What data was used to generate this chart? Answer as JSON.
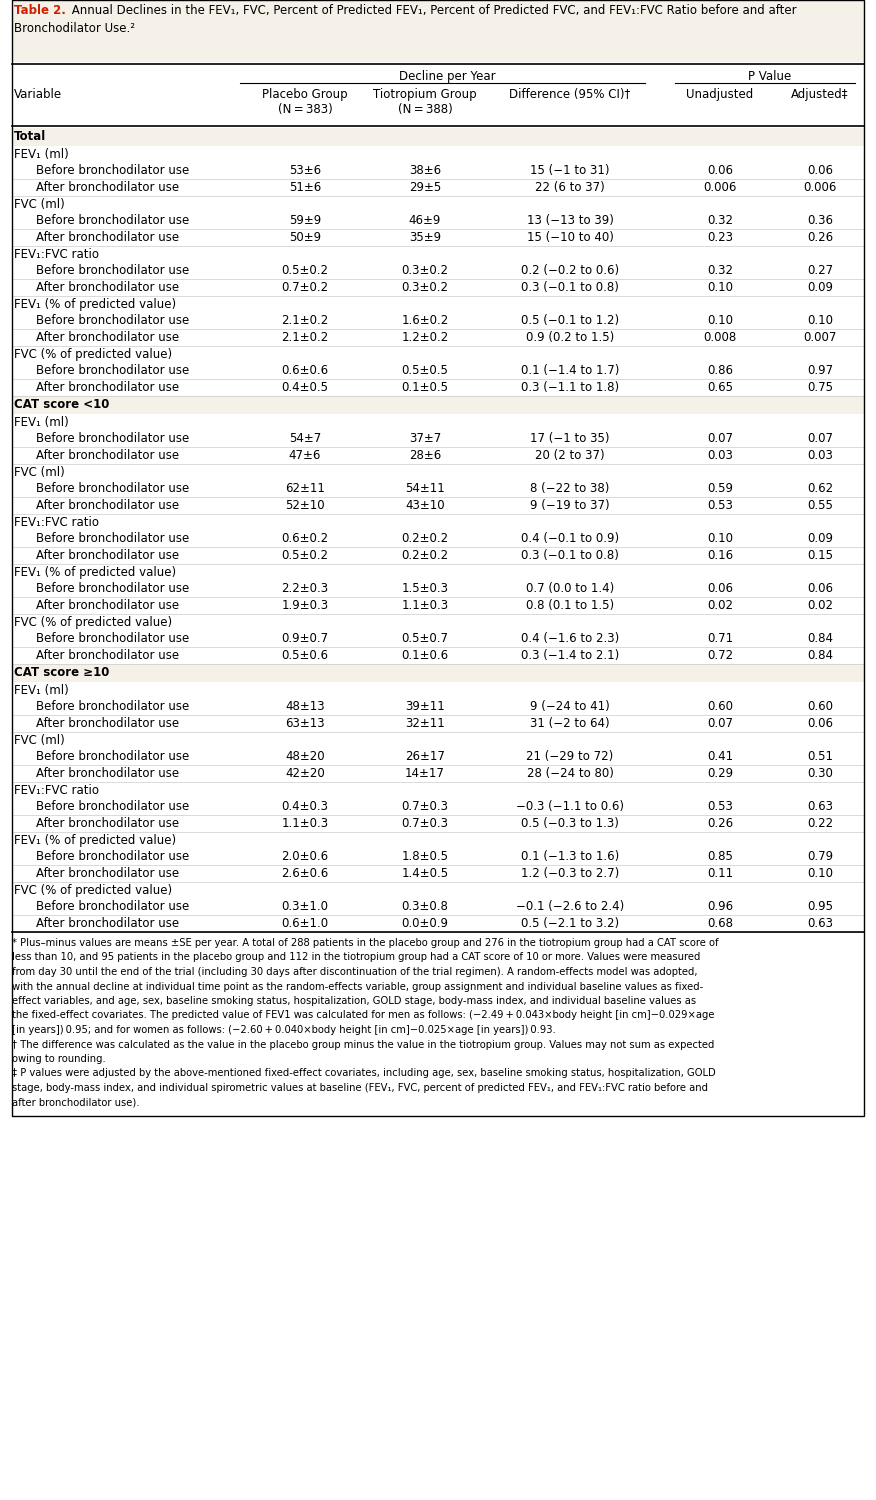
{
  "title_bold": "Table 2.",
  "title_rest": " Annual Declines in the FEV₁, FVC, Percent of Predicted FEV₁, Percent of Predicted FVC, and FEV₁:FVC Ratio before and after Bronchodilator Use.",
  "title_super": "²",
  "bg_color": "#ffffff",
  "section_bg": "#f5f0e8",
  "rows": [
    {
      "type": "section",
      "label": "Total",
      "col1": "",
      "col2": "",
      "col3": "",
      "col4": "",
      "col5": ""
    },
    {
      "type": "subheader",
      "label": "FEV₁ (ml)",
      "col1": "",
      "col2": "",
      "col3": "",
      "col4": "",
      "col5": ""
    },
    {
      "type": "data",
      "label": "Before bronchodilator use",
      "col1": "53±6",
      "col2": "38±6",
      "col3": "15 (−1 to 31)",
      "col4": "0.06",
      "col5": "0.06"
    },
    {
      "type": "data",
      "label": "After bronchodilator use",
      "col1": "51±6",
      "col2": "29±5",
      "col3": "22 (6 to 37)",
      "col4": "0.006",
      "col5": "0.006"
    },
    {
      "type": "subheader",
      "label": "FVC (ml)",
      "col1": "",
      "col2": "",
      "col3": "",
      "col4": "",
      "col5": ""
    },
    {
      "type": "data",
      "label": "Before bronchodilator use",
      "col1": "59±9",
      "col2": "46±9",
      "col3": "13 (−13 to 39)",
      "col4": "0.32",
      "col5": "0.36"
    },
    {
      "type": "data",
      "label": "After bronchodilator use",
      "col1": "50±9",
      "col2": "35±9",
      "col3": "15 (−10 to 40)",
      "col4": "0.23",
      "col5": "0.26"
    },
    {
      "type": "subheader",
      "label": "FEV₁:FVC ratio",
      "col1": "",
      "col2": "",
      "col3": "",
      "col4": "",
      "col5": ""
    },
    {
      "type": "data",
      "label": "Before bronchodilator use",
      "col1": "0.5±0.2",
      "col2": "0.3±0.2",
      "col3": "0.2 (−0.2 to 0.6)",
      "col4": "0.32",
      "col5": "0.27"
    },
    {
      "type": "data",
      "label": "After bronchodilator use",
      "col1": "0.7±0.2",
      "col2": "0.3±0.2",
      "col3": "0.3 (−0.1 to 0.8)",
      "col4": "0.10",
      "col5": "0.09"
    },
    {
      "type": "subheader",
      "label": "FEV₁ (% of predicted value)",
      "col1": "",
      "col2": "",
      "col3": "",
      "col4": "",
      "col5": ""
    },
    {
      "type": "data",
      "label": "Before bronchodilator use",
      "col1": "2.1±0.2",
      "col2": "1.6±0.2",
      "col3": "0.5 (−0.1 to 1.2)",
      "col4": "0.10",
      "col5": "0.10"
    },
    {
      "type": "data",
      "label": "After bronchodilator use",
      "col1": "2.1±0.2",
      "col2": "1.2±0.2",
      "col3": "0.9 (0.2 to 1.5)",
      "col4": "0.008",
      "col5": "0.007"
    },
    {
      "type": "subheader",
      "label": "FVC (% of predicted value)",
      "col1": "",
      "col2": "",
      "col3": "",
      "col4": "",
      "col5": ""
    },
    {
      "type": "data",
      "label": "Before bronchodilator use",
      "col1": "0.6±0.6",
      "col2": "0.5±0.5",
      "col3": "0.1 (−1.4 to 1.7)",
      "col4": "0.86",
      "col5": "0.97"
    },
    {
      "type": "data",
      "label": "After bronchodilator use",
      "col1": "0.4±0.5",
      "col2": "0.1±0.5",
      "col3": "0.3 (−1.1 to 1.8)",
      "col4": "0.65",
      "col5": "0.75"
    },
    {
      "type": "section",
      "label": "CAT score <10",
      "col1": "",
      "col2": "",
      "col3": "",
      "col4": "",
      "col5": ""
    },
    {
      "type": "subheader",
      "label": "FEV₁ (ml)",
      "col1": "",
      "col2": "",
      "col3": "",
      "col4": "",
      "col5": ""
    },
    {
      "type": "data",
      "label": "Before bronchodilator use",
      "col1": "54±7",
      "col2": "37±7",
      "col3": "17 (−1 to 35)",
      "col4": "0.07",
      "col5": "0.07"
    },
    {
      "type": "data",
      "label": "After bronchodilator use",
      "col1": "47±6",
      "col2": "28±6",
      "col3": "20 (2 to 37)",
      "col4": "0.03",
      "col5": "0.03"
    },
    {
      "type": "subheader",
      "label": "FVC (ml)",
      "col1": "",
      "col2": "",
      "col3": "",
      "col4": "",
      "col5": ""
    },
    {
      "type": "data",
      "label": "Before bronchodilator use",
      "col1": "62±11",
      "col2": "54±11",
      "col3": "8 (−22 to 38)",
      "col4": "0.59",
      "col5": "0.62"
    },
    {
      "type": "data",
      "label": "After bronchodilator use",
      "col1": "52±10",
      "col2": "43±10",
      "col3": "9 (−19 to 37)",
      "col4": "0.53",
      "col5": "0.55"
    },
    {
      "type": "subheader",
      "label": "FEV₁:FVC ratio",
      "col1": "",
      "col2": "",
      "col3": "",
      "col4": "",
      "col5": ""
    },
    {
      "type": "data",
      "label": "Before bronchodilator use",
      "col1": "0.6±0.2",
      "col2": "0.2±0.2",
      "col3": "0.4 (−0.1 to 0.9)",
      "col4": "0.10",
      "col5": "0.09"
    },
    {
      "type": "data",
      "label": "After bronchodilator use",
      "col1": "0.5±0.2",
      "col2": "0.2±0.2",
      "col3": "0.3 (−0.1 to 0.8)",
      "col4": "0.16",
      "col5": "0.15"
    },
    {
      "type": "subheader",
      "label": "FEV₁ (% of predicted value)",
      "col1": "",
      "col2": "",
      "col3": "",
      "col4": "",
      "col5": ""
    },
    {
      "type": "data",
      "label": "Before bronchodilator use",
      "col1": "2.2±0.3",
      "col2": "1.5±0.3",
      "col3": "0.7 (0.0 to 1.4)",
      "col4": "0.06",
      "col5": "0.06"
    },
    {
      "type": "data",
      "label": "After bronchodilator use",
      "col1": "1.9±0.3",
      "col2": "1.1±0.3",
      "col3": "0.8 (0.1 to 1.5)",
      "col4": "0.02",
      "col5": "0.02"
    },
    {
      "type": "subheader",
      "label": "FVC (% of predicted value)",
      "col1": "",
      "col2": "",
      "col3": "",
      "col4": "",
      "col5": ""
    },
    {
      "type": "data",
      "label": "Before bronchodilator use",
      "col1": "0.9±0.7",
      "col2": "0.5±0.7",
      "col3": "0.4 (−1.6 to 2.3)",
      "col4": "0.71",
      "col5": "0.84"
    },
    {
      "type": "data",
      "label": "After bronchodilator use",
      "col1": "0.5±0.6",
      "col2": "0.1±0.6",
      "col3": "0.3 (−1.4 to 2.1)",
      "col4": "0.72",
      "col5": "0.84"
    },
    {
      "type": "section",
      "label": "CAT score ≥10",
      "col1": "",
      "col2": "",
      "col3": "",
      "col4": "",
      "col5": ""
    },
    {
      "type": "subheader",
      "label": "FEV₁ (ml)",
      "col1": "",
      "col2": "",
      "col3": "",
      "col4": "",
      "col5": ""
    },
    {
      "type": "data",
      "label": "Before bronchodilator use",
      "col1": "48±13",
      "col2": "39±11",
      "col3": "9 (−24 to 41)",
      "col4": "0.60",
      "col5": "0.60"
    },
    {
      "type": "data",
      "label": "After bronchodilator use",
      "col1": "63±13",
      "col2": "32±11",
      "col3": "31 (−2 to 64)",
      "col4": "0.07",
      "col5": "0.06"
    },
    {
      "type": "subheader",
      "label": "FVC (ml)",
      "col1": "",
      "col2": "",
      "col3": "",
      "col4": "",
      "col5": ""
    },
    {
      "type": "data",
      "label": "Before bronchodilator use",
      "col1": "48±20",
      "col2": "26±17",
      "col3": "21 (−29 to 72)",
      "col4": "0.41",
      "col5": "0.51"
    },
    {
      "type": "data",
      "label": "After bronchodilator use",
      "col1": "42±20",
      "col2": "14±17",
      "col3": "28 (−24 to 80)",
      "col4": "0.29",
      "col5": "0.30"
    },
    {
      "type": "subheader",
      "label": "FEV₁:FVC ratio",
      "col1": "",
      "col2": "",
      "col3": "",
      "col4": "",
      "col5": ""
    },
    {
      "type": "data",
      "label": "Before bronchodilator use",
      "col1": "0.4±0.3",
      "col2": "0.7±0.3",
      "col3": "−0.3 (−1.1 to 0.6)",
      "col4": "0.53",
      "col5": "0.63"
    },
    {
      "type": "data",
      "label": "After bronchodilator use",
      "col1": "1.1±0.3",
      "col2": "0.7±0.3",
      "col3": "0.5 (−0.3 to 1.3)",
      "col4": "0.26",
      "col5": "0.22"
    },
    {
      "type": "subheader",
      "label": "FEV₁ (% of predicted value)",
      "col1": "",
      "col2": "",
      "col3": "",
      "col4": "",
      "col5": ""
    },
    {
      "type": "data",
      "label": "Before bronchodilator use",
      "col1": "2.0±0.6",
      "col2": "1.8±0.5",
      "col3": "0.1 (−1.3 to 1.6)",
      "col4": "0.85",
      "col5": "0.79"
    },
    {
      "type": "data",
      "label": "After bronchodilator use",
      "col1": "2.6±0.6",
      "col2": "1.4±0.5",
      "col3": "1.2 (−0.3 to 2.7)",
      "col4": "0.11",
      "col5": "0.10"
    },
    {
      "type": "subheader",
      "label": "FVC (% of predicted value)",
      "col1": "",
      "col2": "",
      "col3": "",
      "col4": "",
      "col5": ""
    },
    {
      "type": "data",
      "label": "Before bronchodilator use",
      "col1": "0.3±1.0",
      "col2": "0.3±0.8",
      "col3": "−0.1 (−2.6 to 2.4)",
      "col4": "0.96",
      "col5": "0.95"
    },
    {
      "type": "data",
      "label": "After bronchodilator use",
      "col1": "0.6±1.0",
      "col2": "0.0±0.9",
      "col3": "0.5 (−2.1 to 3.2)",
      "col4": "0.68",
      "col5": "0.63"
    }
  ],
  "footnote_lines": [
    [
      {
        "text": "* ",
        "bold": false
      },
      {
        "text": "Plus–minus values are means ±SE per year. A total of 288 patients in the placebo group and 276 in the tiotropium group had a CAT score of",
        "bold": false
      }
    ],
    [
      {
        "text": "less than 10, and 95 patients in the placebo group and 112 in the tiotropium group had a CAT score of 10 or more. Values were measured",
        "bold": false
      }
    ],
    [
      {
        "text": "from day 30 until the end of the trial (including 30 days after discontinuation of the trial regimen). A random-effects model was adopted,",
        "bold": false
      }
    ],
    [
      {
        "text": "with the annual decline at individual time point as the random-effects variable, group assignment and individual baseline values as fixed-",
        "bold": false
      }
    ],
    [
      {
        "text": "effect variables, and age, sex, baseline smoking status, hospitalization, GOLD stage, body-mass index, and individual baseline values as",
        "bold": false
      }
    ],
    [
      {
        "text": "the fixed-effect covariates. The predicted value of FEV",
        "bold": false
      },
      {
        "text": "1",
        "bold": false,
        "sub": true
      },
      {
        "text": " was calculated for men as follows: (−2.49 + 0.043×body height [in cm]−0.029×age",
        "bold": false
      }
    ],
    [
      {
        "text": "[in years]) 0.95; and for women as follows: (−2.60 + 0.040×body height [in cm]−0.025×age [in years]) 0.93.",
        "bold": false
      }
    ],
    [
      {
        "text": "† ",
        "bold": false
      },
      {
        "text": "The difference was calculated as the value in the placebo group minus the value in the tiotropium group. Values may not sum as expected",
        "bold": false
      }
    ],
    [
      {
        "text": "owing to rounding.",
        "bold": false
      }
    ],
    [
      {
        "text": "‡ ",
        "bold": false
      },
      {
        "text": "P values were adjusted by the above-mentioned fixed-effect covariates, including age, sex, baseline smoking status, hospitalization, GOLD",
        "bold": false
      }
    ],
    [
      {
        "text": "stage, body-mass index, and individual spirometric values at baseline (FEV₁, FVC, percent of predicted FEV₁, and FEV₁:FVC ratio before and",
        "bold": false
      }
    ],
    [
      {
        "text": "after bronchodilator use).",
        "bold": false
      }
    ]
  ]
}
